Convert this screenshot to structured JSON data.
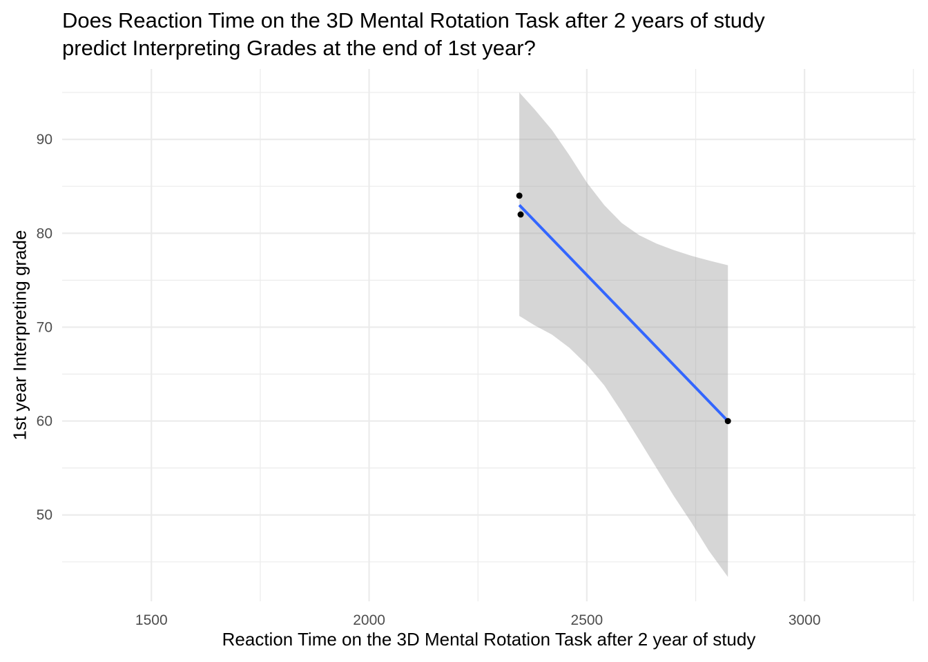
{
  "chart_data": {
    "type": "scatter",
    "title_lines": [
      "Does Reaction Time on the 3D Mental Rotation Task after 2 years of study",
      "predict Interpreting Grades at the end of 1st year?"
    ],
    "xlabel": "Reaction Time on the 3D Mental Rotation Task after 2 year of study",
    "ylabel": "1st year Interpreting grade",
    "xlim": [
      1295,
      3255
    ],
    "ylim": [
      40.8,
      97.5
    ],
    "x_ticks": [
      1500,
      2000,
      2500,
      3000
    ],
    "x_minor_ticks": [
      1750,
      2250,
      2750,
      3250
    ],
    "y_ticks": [
      50,
      60,
      70,
      80,
      90
    ],
    "y_minor_ticks": [
      45,
      55,
      65,
      75,
      85,
      95
    ],
    "grid": true,
    "points": [
      {
        "x": 2345,
        "y": 84
      },
      {
        "x": 2348,
        "y": 82
      },
      {
        "x": 2824,
        "y": 60
      }
    ],
    "fit_line": {
      "x": [
        2345,
        2824
      ],
      "y": [
        83.0,
        60.0
      ]
    },
    "confidence_band": {
      "x": [
        2345,
        2380,
        2420,
        2460,
        2500,
        2540,
        2580,
        2620,
        2660,
        2700,
        2740,
        2780,
        2824
      ],
      "lower": [
        71.2,
        70.2,
        69.2,
        67.8,
        66.0,
        63.8,
        61.0,
        58.0,
        55.0,
        52.0,
        49.2,
        46.2,
        43.4
      ],
      "upper": [
        95.0,
        93.2,
        91.0,
        88.3,
        85.4,
        83.0,
        81.1,
        79.8,
        78.9,
        78.2,
        77.6,
        77.1,
        76.6
      ]
    },
    "colors": {
      "points": "#000000",
      "fit_line": "#3366FF",
      "band": "#999999",
      "grid": "#ebebeb",
      "tick_text": "#4d4d4d"
    }
  }
}
